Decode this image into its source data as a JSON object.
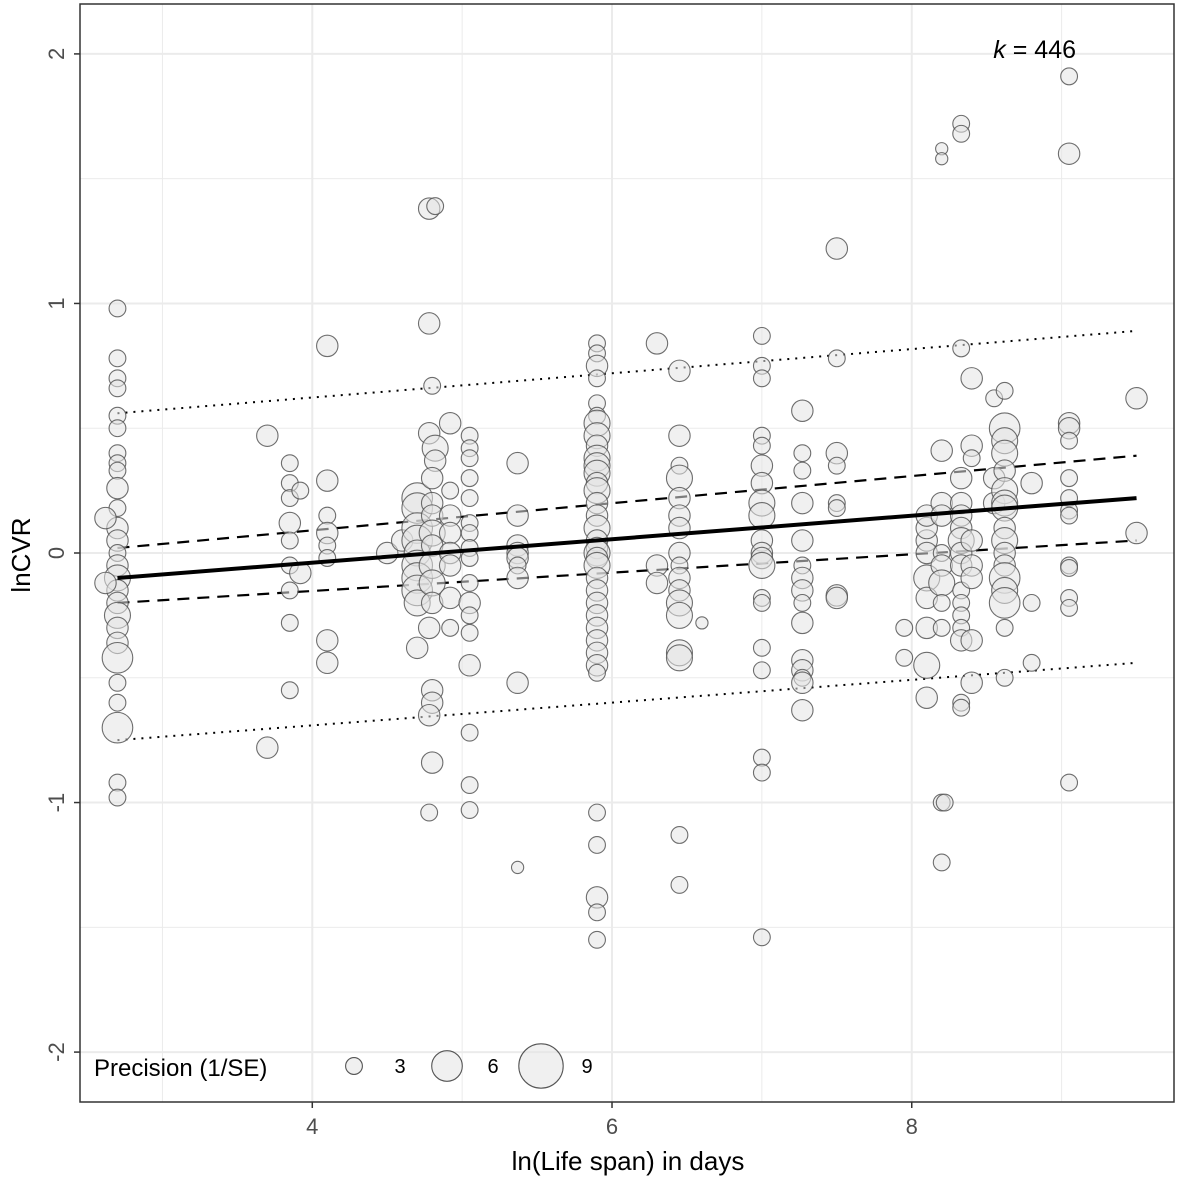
{
  "chart_data": {
    "type": "scatter",
    "xlabel": "ln(Life span) in days",
    "ylabel": "lnCVR",
    "xlim": [
      2.45,
      9.75
    ],
    "ylim": [
      -2.2,
      2.2
    ],
    "x_ticks": [
      4,
      6,
      8
    ],
    "x_tick_labels": [
      "4",
      "6",
      "8"
    ],
    "y_ticks": [
      -2,
      -1,
      0,
      1,
      2
    ],
    "y_tick_labels": [
      "-2",
      "-1",
      "0",
      "1",
      "2"
    ],
    "grid": true,
    "annotation": {
      "italic": "k",
      "text": " = 446"
    },
    "legend": {
      "title": "Precision (1/SE)",
      "sizes": [
        3,
        6,
        9
      ],
      "labels": [
        "3",
        "6",
        "9"
      ],
      "placement": "bottom-left"
    },
    "colors": {
      "point_fill": "#e3e3e3",
      "point_stroke": "#555555",
      "grid": "#ebebeb",
      "line": "#000000"
    },
    "regression": {
      "x0": 2.7,
      "x1": 9.5,
      "y0": -0.1,
      "y1": 0.22
    },
    "confidence_band": {
      "lower": {
        "x0": 2.7,
        "x1": 9.5,
        "y0": -0.2,
        "y1": 0.05
      },
      "upper": {
        "x0": 2.7,
        "x1": 9.5,
        "y0": 0.02,
        "y1": 0.39
      }
    },
    "prediction_band": {
      "lower": {
        "x0": 2.7,
        "x1": 9.5,
        "y0": -0.75,
        "y1": -0.44
      },
      "upper": {
        "x0": 2.7,
        "x1": 9.5,
        "y0": 0.56,
        "y1": 0.89
      }
    },
    "points": [
      [
        2.7,
        0.98,
        3
      ],
      [
        2.7,
        0.78,
        3
      ],
      [
        2.7,
        0.7,
        3
      ],
      [
        2.7,
        0.66,
        3
      ],
      [
        2.7,
        0.55,
        3
      ],
      [
        2.7,
        0.5,
        3
      ],
      [
        2.7,
        0.4,
        3
      ],
      [
        2.7,
        0.36,
        3
      ],
      [
        2.7,
        0.33,
        3
      ],
      [
        2.7,
        0.26,
        4
      ],
      [
        2.7,
        0.18,
        3
      ],
      [
        2.7,
        0.1,
        4
      ],
      [
        2.7,
        0.05,
        4
      ],
      [
        2.7,
        0.0,
        3
      ],
      [
        2.7,
        -0.05,
        4
      ],
      [
        2.7,
        -0.1,
        5
      ],
      [
        2.7,
        -0.15,
        4
      ],
      [
        2.7,
        -0.2,
        4
      ],
      [
        2.7,
        -0.25,
        5
      ],
      [
        2.7,
        -0.3,
        4
      ],
      [
        2.7,
        -0.36,
        4
      ],
      [
        2.7,
        -0.42,
        6
      ],
      [
        2.7,
        -0.52,
        3
      ],
      [
        2.7,
        -0.6,
        3
      ],
      [
        2.7,
        -0.7,
        6
      ],
      [
        2.7,
        -0.92,
        3
      ],
      [
        2.7,
        -0.98,
        3
      ],
      [
        2.62,
        0.14,
        4
      ],
      [
        2.62,
        -0.12,
        4
      ],
      [
        3.7,
        0.47,
        4
      ],
      [
        3.7,
        -0.78,
        4
      ],
      [
        3.85,
        0.36,
        3
      ],
      [
        3.85,
        0.28,
        3
      ],
      [
        3.85,
        0.22,
        3
      ],
      [
        3.85,
        0.12,
        4
      ],
      [
        3.85,
        0.05,
        3
      ],
      [
        3.85,
        -0.05,
        3
      ],
      [
        3.85,
        -0.15,
        3
      ],
      [
        3.85,
        -0.28,
        3
      ],
      [
        3.85,
        -0.55,
        3
      ],
      [
        3.92,
        0.25,
        3
      ],
      [
        3.92,
        -0.08,
        4
      ],
      [
        4.1,
        0.83,
        4
      ],
      [
        4.1,
        0.29,
        4
      ],
      [
        4.1,
        0.15,
        3
      ],
      [
        4.1,
        0.08,
        4
      ],
      [
        4.1,
        0.03,
        3
      ],
      [
        4.1,
        -0.02,
        3
      ],
      [
        4.1,
        -0.35,
        4
      ],
      [
        4.1,
        -0.44,
        4
      ],
      [
        4.5,
        0.0,
        4
      ],
      [
        4.6,
        0.05,
        4
      ],
      [
        4.7,
        0.22,
        6
      ],
      [
        4.7,
        0.18,
        6
      ],
      [
        4.7,
        0.1,
        6
      ],
      [
        4.7,
        0.05,
        6
      ],
      [
        4.7,
        0.0,
        5
      ],
      [
        4.7,
        -0.05,
        6
      ],
      [
        4.7,
        -0.1,
        6
      ],
      [
        4.7,
        -0.15,
        6
      ],
      [
        4.7,
        -0.2,
        5
      ],
      [
        4.7,
        -0.38,
        4
      ],
      [
        4.78,
        1.38,
        4
      ],
      [
        4.82,
        1.39,
        3
      ],
      [
        4.78,
        0.92,
        4
      ],
      [
        4.8,
        0.67,
        3
      ],
      [
        4.78,
        0.48,
        4
      ],
      [
        4.82,
        0.42,
        5
      ],
      [
        4.82,
        0.37,
        4
      ],
      [
        4.8,
        0.3,
        4
      ],
      [
        4.8,
        0.2,
        4
      ],
      [
        4.8,
        0.15,
        4
      ],
      [
        4.8,
        0.08,
        5
      ],
      [
        4.8,
        0.03,
        4
      ],
      [
        4.8,
        -0.05,
        5
      ],
      [
        4.8,
        -0.12,
        5
      ],
      [
        4.8,
        -0.2,
        4
      ],
      [
        4.78,
        -0.3,
        4
      ],
      [
        4.8,
        -0.55,
        4
      ],
      [
        4.8,
        -0.6,
        4
      ],
      [
        4.78,
        -0.65,
        4
      ],
      [
        4.8,
        -0.84,
        4
      ],
      [
        4.78,
        -1.04,
        3
      ],
      [
        4.92,
        0.52,
        4
      ],
      [
        4.92,
        0.25,
        3
      ],
      [
        4.92,
        0.15,
        4
      ],
      [
        4.92,
        0.08,
        4
      ],
      [
        4.92,
        0.0,
        4
      ],
      [
        4.92,
        -0.05,
        4
      ],
      [
        4.92,
        -0.18,
        4
      ],
      [
        4.92,
        -0.3,
        3
      ],
      [
        5.05,
        0.47,
        3
      ],
      [
        5.05,
        0.42,
        3
      ],
      [
        5.05,
        0.38,
        3
      ],
      [
        5.05,
        0.3,
        3
      ],
      [
        5.05,
        0.22,
        3
      ],
      [
        5.05,
        0.12,
        3
      ],
      [
        5.05,
        0.08,
        3
      ],
      [
        5.05,
        0.02,
        3
      ],
      [
        5.05,
        -0.02,
        3
      ],
      [
        5.05,
        -0.12,
        3
      ],
      [
        5.05,
        -0.2,
        4
      ],
      [
        5.05,
        -0.25,
        3
      ],
      [
        5.05,
        -0.32,
        3
      ],
      [
        5.05,
        -0.45,
        4
      ],
      [
        5.05,
        -0.72,
        3
      ],
      [
        5.05,
        -0.93,
        3
      ],
      [
        5.05,
        -1.03,
        3
      ],
      [
        5.37,
        0.36,
        4
      ],
      [
        5.37,
        0.15,
        4
      ],
      [
        5.37,
        0.03,
        4
      ],
      [
        5.37,
        0.0,
        4
      ],
      [
        5.37,
        -0.02,
        4
      ],
      [
        5.37,
        -0.05,
        3
      ],
      [
        5.37,
        -0.1,
        4
      ],
      [
        5.37,
        -0.52,
        4
      ],
      [
        5.37,
        -1.26,
        2
      ],
      [
        5.9,
        0.84,
        3
      ],
      [
        5.9,
        0.8,
        3
      ],
      [
        5.9,
        0.75,
        4
      ],
      [
        5.9,
        0.7,
        3
      ],
      [
        5.9,
        0.6,
        3
      ],
      [
        5.9,
        0.55,
        3
      ],
      [
        5.9,
        0.52,
        5
      ],
      [
        5.9,
        0.47,
        5
      ],
      [
        5.9,
        0.43,
        4
      ],
      [
        5.9,
        0.38,
        5
      ],
      [
        5.9,
        0.35,
        5
      ],
      [
        5.9,
        0.32,
        5
      ],
      [
        5.9,
        0.28,
        4
      ],
      [
        5.9,
        0.25,
        5
      ],
      [
        5.9,
        0.2,
        4
      ],
      [
        5.9,
        0.15,
        4
      ],
      [
        5.9,
        0.1,
        5
      ],
      [
        5.9,
        0.05,
        4
      ],
      [
        5.9,
        0.02,
        4
      ],
      [
        5.9,
        0.0,
        5
      ],
      [
        5.9,
        -0.02,
        4
      ],
      [
        5.9,
        -0.05,
        5
      ],
      [
        5.9,
        -0.1,
        4
      ],
      [
        5.9,
        -0.15,
        4
      ],
      [
        5.9,
        -0.2,
        4
      ],
      [
        5.9,
        -0.25,
        4
      ],
      [
        5.9,
        -0.3,
        4
      ],
      [
        5.9,
        -0.35,
        4
      ],
      [
        5.9,
        -0.4,
        4
      ],
      [
        5.9,
        -0.45,
        4
      ],
      [
        5.9,
        -0.48,
        3
      ],
      [
        5.9,
        -1.04,
        3
      ],
      [
        5.9,
        -1.17,
        3
      ],
      [
        5.9,
        -1.38,
        4
      ],
      [
        5.9,
        -1.44,
        3
      ],
      [
        5.9,
        -1.55,
        3
      ],
      [
        6.3,
        0.84,
        4
      ],
      [
        6.3,
        -0.05,
        4
      ],
      [
        6.3,
        -0.12,
        4
      ],
      [
        6.45,
        0.73,
        4
      ],
      [
        6.45,
        0.47,
        4
      ],
      [
        6.45,
        0.35,
        3
      ],
      [
        6.45,
        0.3,
        5
      ],
      [
        6.45,
        0.22,
        4
      ],
      [
        6.45,
        0.15,
        4
      ],
      [
        6.45,
        0.1,
        4
      ],
      [
        6.45,
        0.0,
        4
      ],
      [
        6.45,
        -0.05,
        3
      ],
      [
        6.45,
        -0.1,
        4
      ],
      [
        6.45,
        -0.15,
        4
      ],
      [
        6.45,
        -0.2,
        5
      ],
      [
        6.45,
        -0.25,
        5
      ],
      [
        6.45,
        -0.4,
        5
      ],
      [
        6.45,
        -0.42,
        5
      ],
      [
        6.45,
        -1.13,
        3
      ],
      [
        6.45,
        -1.33,
        3
      ],
      [
        6.6,
        -0.28,
        2
      ],
      [
        7.0,
        0.87,
        3
      ],
      [
        7.0,
        0.75,
        3
      ],
      [
        7.0,
        0.7,
        3
      ],
      [
        7.0,
        0.47,
        3
      ],
      [
        7.0,
        0.43,
        3
      ],
      [
        7.0,
        0.35,
        4
      ],
      [
        7.0,
        0.28,
        4
      ],
      [
        7.0,
        0.2,
        5
      ],
      [
        7.0,
        0.15,
        5
      ],
      [
        7.0,
        0.05,
        4
      ],
      [
        7.0,
        0.0,
        4
      ],
      [
        7.0,
        -0.02,
        4
      ],
      [
        7.0,
        -0.05,
        5
      ],
      [
        7.0,
        -0.18,
        3
      ],
      [
        7.0,
        -0.2,
        3
      ],
      [
        7.0,
        -0.38,
        3
      ],
      [
        7.0,
        -0.47,
        3
      ],
      [
        7.0,
        -0.82,
        3
      ],
      [
        7.0,
        -0.88,
        3
      ],
      [
        7.0,
        -1.54,
        3
      ],
      [
        7.27,
        0.57,
        4
      ],
      [
        7.27,
        0.4,
        3
      ],
      [
        7.27,
        0.33,
        3
      ],
      [
        7.27,
        0.2,
        4
      ],
      [
        7.27,
        0.05,
        4
      ],
      [
        7.27,
        -0.05,
        3
      ],
      [
        7.27,
        -0.1,
        4
      ],
      [
        7.27,
        -0.15,
        4
      ],
      [
        7.27,
        -0.2,
        3
      ],
      [
        7.27,
        -0.28,
        4
      ],
      [
        7.27,
        -0.43,
        4
      ],
      [
        7.27,
        -0.47,
        4
      ],
      [
        7.27,
        -0.5,
        3
      ],
      [
        7.27,
        -0.52,
        4
      ],
      [
        7.27,
        -0.63,
        4
      ],
      [
        7.5,
        1.22,
        4
      ],
      [
        7.5,
        0.78,
        3
      ],
      [
        7.5,
        0.4,
        4
      ],
      [
        7.5,
        0.35,
        3
      ],
      [
        7.5,
        0.2,
        3
      ],
      [
        7.5,
        0.18,
        3
      ],
      [
        7.5,
        -0.17,
        4
      ],
      [
        7.5,
        -0.18,
        4
      ],
      [
        7.95,
        -0.3,
        3
      ],
      [
        7.95,
        -0.42,
        3
      ],
      [
        8.1,
        0.05,
        4
      ],
      [
        8.1,
        0.1,
        4
      ],
      [
        8.1,
        0.15,
        4
      ],
      [
        8.1,
        0.0,
        4
      ],
      [
        8.1,
        -0.1,
        5
      ],
      [
        8.1,
        -0.18,
        4
      ],
      [
        8.1,
        -0.3,
        4
      ],
      [
        8.1,
        -0.45,
        5
      ],
      [
        8.1,
        -0.58,
        4
      ],
      [
        8.2,
        1.62,
        2
      ],
      [
        8.2,
        1.58,
        2
      ],
      [
        8.2,
        0.41,
        4
      ],
      [
        8.2,
        0.2,
        4
      ],
      [
        8.2,
        0.15,
        4
      ],
      [
        8.2,
        0.0,
        3
      ],
      [
        8.2,
        -0.05,
        4
      ],
      [
        8.2,
        -0.12,
        5
      ],
      [
        8.2,
        -0.2,
        3
      ],
      [
        8.2,
        -0.3,
        3
      ],
      [
        8.2,
        -1.0,
        3
      ],
      [
        8.2,
        -1.24,
        3
      ],
      [
        8.22,
        -1.0,
        3
      ],
      [
        8.33,
        1.72,
        3
      ],
      [
        8.33,
        1.68,
        3
      ],
      [
        8.33,
        0.82,
        3
      ],
      [
        8.33,
        0.3,
        4
      ],
      [
        8.33,
        0.2,
        4
      ],
      [
        8.33,
        0.15,
        4
      ],
      [
        8.33,
        0.1,
        4
      ],
      [
        8.33,
        0.05,
        5
      ],
      [
        8.33,
        0.0,
        4
      ],
      [
        8.33,
        -0.05,
        4
      ],
      [
        8.33,
        -0.15,
        3
      ],
      [
        8.33,
        -0.2,
        3
      ],
      [
        8.33,
        -0.25,
        3
      ],
      [
        8.33,
        -0.3,
        3
      ],
      [
        8.33,
        -0.35,
        4
      ],
      [
        8.33,
        -0.6,
        3
      ],
      [
        8.33,
        -0.62,
        3
      ],
      [
        8.4,
        0.7,
        4
      ],
      [
        8.4,
        0.43,
        4
      ],
      [
        8.4,
        0.38,
        3
      ],
      [
        8.4,
        0.05,
        4
      ],
      [
        8.4,
        -0.05,
        4
      ],
      [
        8.4,
        -0.1,
        4
      ],
      [
        8.4,
        -0.35,
        4
      ],
      [
        8.4,
        -0.52,
        4
      ],
      [
        8.55,
        0.62,
        3
      ],
      [
        8.55,
        0.3,
        4
      ],
      [
        8.55,
        0.2,
        4
      ],
      [
        8.62,
        0.65,
        3
      ],
      [
        8.62,
        0.5,
        6
      ],
      [
        8.62,
        0.45,
        5
      ],
      [
        8.62,
        0.4,
        5
      ],
      [
        8.62,
        0.33,
        4
      ],
      [
        8.62,
        0.25,
        5
      ],
      [
        8.62,
        0.2,
        5
      ],
      [
        8.62,
        0.18,
        5
      ],
      [
        8.62,
        0.1,
        4
      ],
      [
        8.62,
        0.05,
        5
      ],
      [
        8.62,
        0.0,
        4
      ],
      [
        8.62,
        -0.05,
        4
      ],
      [
        8.62,
        -0.1,
        6
      ],
      [
        8.62,
        -0.15,
        5
      ],
      [
        8.62,
        -0.2,
        6
      ],
      [
        8.62,
        -0.3,
        3
      ],
      [
        8.62,
        -0.5,
        3
      ],
      [
        8.8,
        0.28,
        4
      ],
      [
        8.8,
        -0.2,
        3
      ],
      [
        8.8,
        -0.44,
        3
      ],
      [
        9.05,
        1.91,
        3
      ],
      [
        9.05,
        1.6,
        4
      ],
      [
        9.05,
        0.52,
        4
      ],
      [
        9.05,
        0.5,
        4
      ],
      [
        9.05,
        0.45,
        3
      ],
      [
        9.05,
        0.3,
        3
      ],
      [
        9.05,
        0.22,
        3
      ],
      [
        9.05,
        0.17,
        3
      ],
      [
        9.05,
        0.15,
        3
      ],
      [
        9.05,
        -0.05,
        3
      ],
      [
        9.05,
        -0.06,
        3
      ],
      [
        9.05,
        -0.18,
        3
      ],
      [
        9.05,
        -0.22,
        3
      ],
      [
        9.05,
        -0.92,
        3
      ],
      [
        9.5,
        0.62,
        4
      ],
      [
        9.5,
        0.08,
        4
      ]
    ]
  }
}
